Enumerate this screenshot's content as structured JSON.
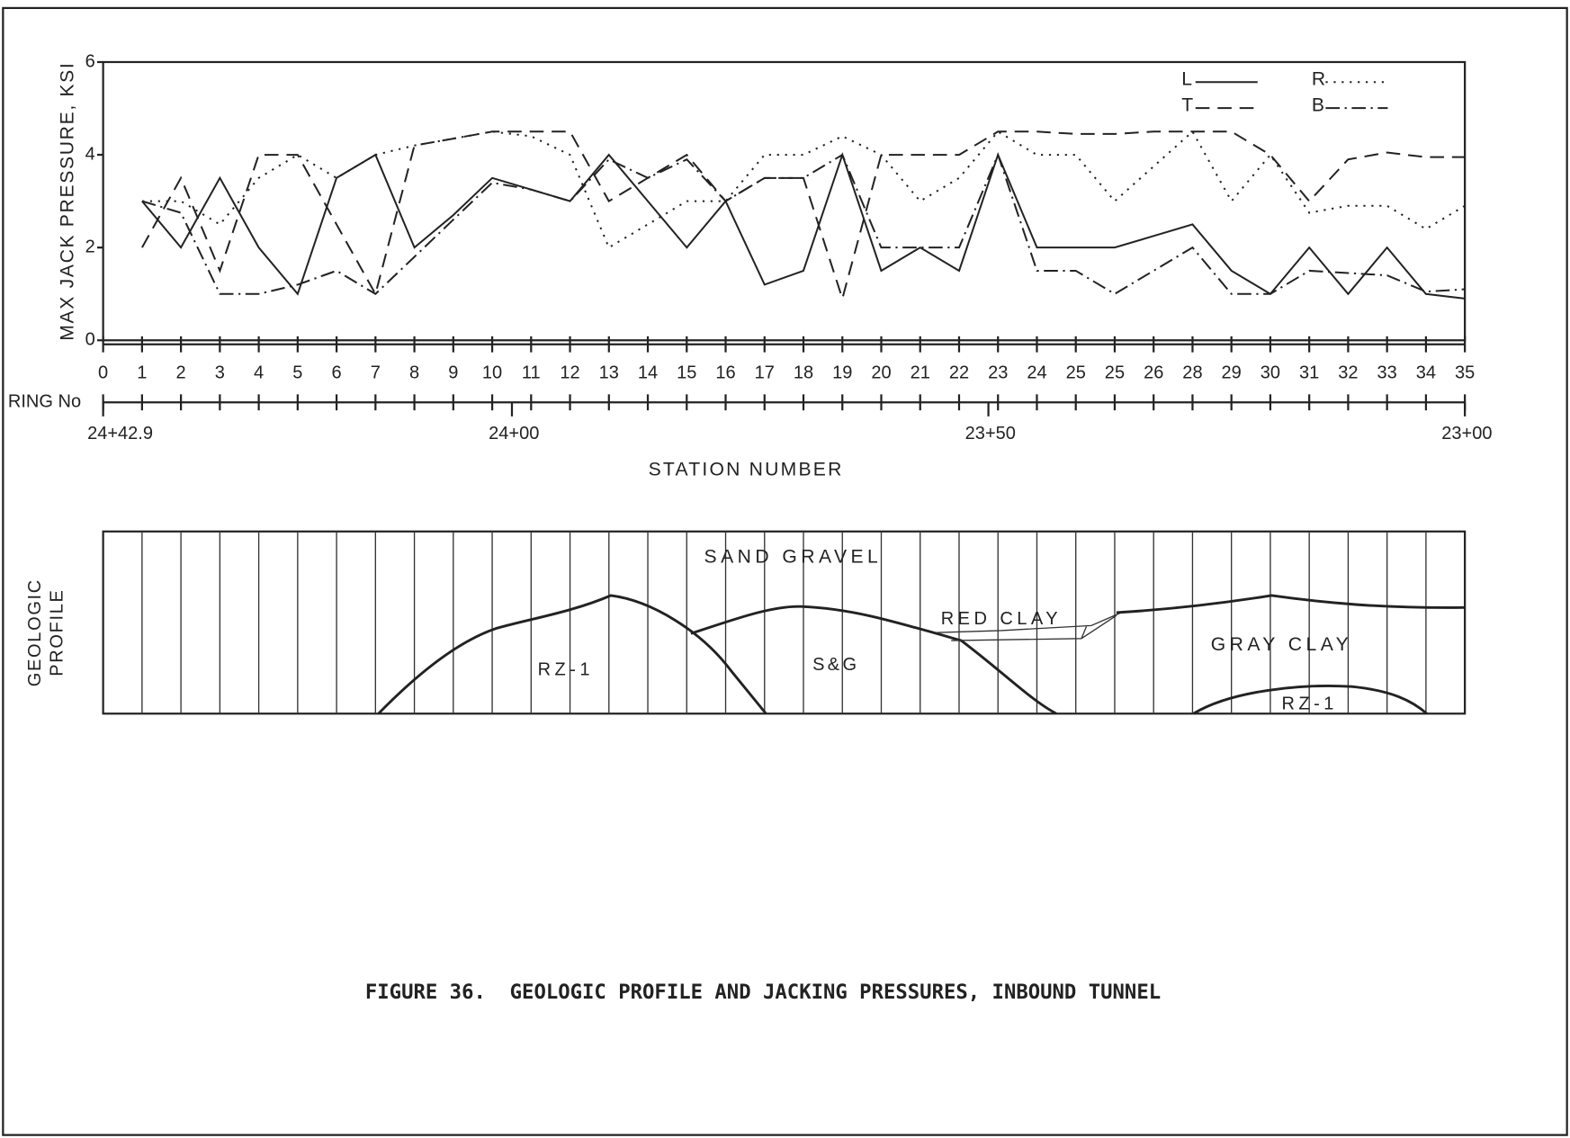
{
  "chart_data": {
    "type": "line",
    "ylabel": "MAX JACK PRESSURE, KSI",
    "xlabel": "RING No",
    "categories": [
      "0",
      "1",
      "2",
      "3",
      "4",
      "5",
      "6",
      "7",
      "8",
      "9",
      "10",
      "11",
      "12",
      "13",
      "14",
      "15",
      "16",
      "17",
      "18",
      "19",
      "20",
      "21",
      "22",
      "23",
      "24",
      "25",
      "25",
      "26",
      "28",
      "29",
      "30",
      "31",
      "32",
      "33",
      "34",
      "35"
    ],
    "ylim": [
      0,
      6
    ],
    "yticks": [
      0,
      2,
      4,
      6
    ],
    "legend": "upper right",
    "series": [
      {
        "name": "L",
        "color": "#222222",
        "dash": "solid",
        "values": [
          null,
          3,
          2,
          3.5,
          2,
          1,
          3.5,
          4,
          2,
          2.7,
          3.5,
          3.25,
          3,
          4,
          3,
          2,
          3,
          1.2,
          1.5,
          4,
          1.5,
          2,
          1.5,
          4,
          2,
          2,
          2,
          2.25,
          2.5,
          1.5,
          1,
          2,
          1,
          2,
          1,
          0.9
        ]
      },
      {
        "name": "R",
        "color": "#222222",
        "dash": "dotted",
        "values": [
          null,
          3,
          3,
          2.5,
          3.5,
          4,
          3.5,
          4,
          4.2,
          4.35,
          4.5,
          4.4,
          4,
          2,
          2.5,
          3,
          3,
          4,
          4,
          4.4,
          4,
          3,
          3.5,
          4.5,
          4,
          4,
          3,
          3.75,
          4.5,
          3,
          4,
          2.75,
          2.9,
          2.9,
          2.4,
          2.9
        ]
      },
      {
        "name": "T",
        "color": "#222222",
        "dash": "dashed",
        "values": [
          null,
          2,
          3.5,
          1.5,
          4,
          4,
          2.5,
          1,
          4.2,
          4.35,
          4.5,
          4.5,
          4.5,
          3,
          3.5,
          4,
          3,
          3.5,
          3.5,
          0.9,
          4,
          4,
          4,
          4.5,
          4.5,
          4.45,
          4.45,
          4.5,
          4.5,
          4.5,
          4,
          3,
          3.9,
          4.05,
          3.95,
          3.95
        ]
      },
      {
        "name": "B",
        "color": "#222222",
        "dash": "dashdot",
        "values": [
          null,
          3,
          2.75,
          1,
          1,
          1.2,
          1.5,
          1,
          1.8,
          2.6,
          3.4,
          3.25,
          3,
          3.9,
          3.5,
          3.9,
          3,
          3.5,
          3.5,
          4,
          2,
          2,
          2,
          4,
          1.5,
          1.5,
          1,
          1.5,
          2,
          1,
          1,
          1.5,
          1.45,
          1.4,
          1.05,
          1.1
        ]
      }
    ],
    "x2label": "STATION NUMBER",
    "x2lim": [
      2442.9,
      2300
    ],
    "x2ticks": [
      {
        "value": 2442.9,
        "label": "24+42.9"
      },
      {
        "value": 2400,
        "label": "24+00"
      },
      {
        "value": 2350,
        "label": "23+50"
      },
      {
        "value": 2300,
        "label": "23+00"
      }
    ]
  },
  "geologic_profile": {
    "label": "GEOLOGIC PROFILE",
    "zones": [
      "SAND GRAVEL",
      "RZ-1",
      "S&G",
      "RED CLAY",
      "GRAY CLAY",
      "RZ-1"
    ]
  },
  "caption": "FIGURE 36.  GEOLOGIC PROFILE AND JACKING PRESSURES, INBOUND TUNNEL"
}
